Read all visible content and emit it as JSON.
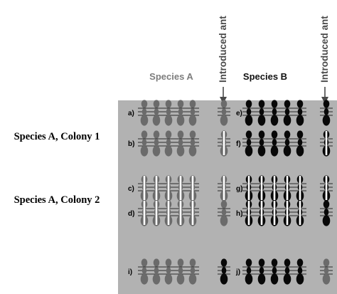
{
  "labels": {
    "species_a": "Species A",
    "species_b": "Species B",
    "introduced_ant": "Introduced ant",
    "colony_1": "Species A, Colony 1",
    "colony_2": "Species A, Colony 2"
  },
  "colors": {
    "panel": "#b2b2b2",
    "grey_ant": "#6b6b6b",
    "black_ant": "#080808",
    "white_stripe": "#ffffff",
    "label_grey": "#7d7d7d",
    "label_black": "#111111",
    "arrow": "#4a4a4a"
  },
  "rows": [
    {
      "left_letter": "a)",
      "left_group": "grey-plain",
      "left_intro": "grey-plain",
      "right_letter": "e)",
      "right_group": "black-plain",
      "right_intro": "black-plain"
    },
    {
      "left_letter": "b)",
      "left_group": "grey-plain",
      "left_intro": "grey-striped",
      "right_letter": "f)",
      "right_group": "black-plain",
      "right_intro": "black-striped"
    },
    {
      "left_letter": "c)",
      "left_group": "grey-striped",
      "left_intro": "grey-striped",
      "right_letter": "g)",
      "right_group": "black-striped",
      "right_intro": "black-striped"
    },
    {
      "left_letter": "d)",
      "left_group": "grey-striped",
      "left_intro": "grey-plain",
      "right_letter": "h)",
      "right_group": "black-striped",
      "right_intro": "black-plain"
    },
    {
      "left_letter": "i)",
      "left_group": "grey-plain",
      "left_intro": "black-plain",
      "right_letter": "j)",
      "right_group": "black-plain",
      "right_intro": "grey-plain"
    }
  ]
}
